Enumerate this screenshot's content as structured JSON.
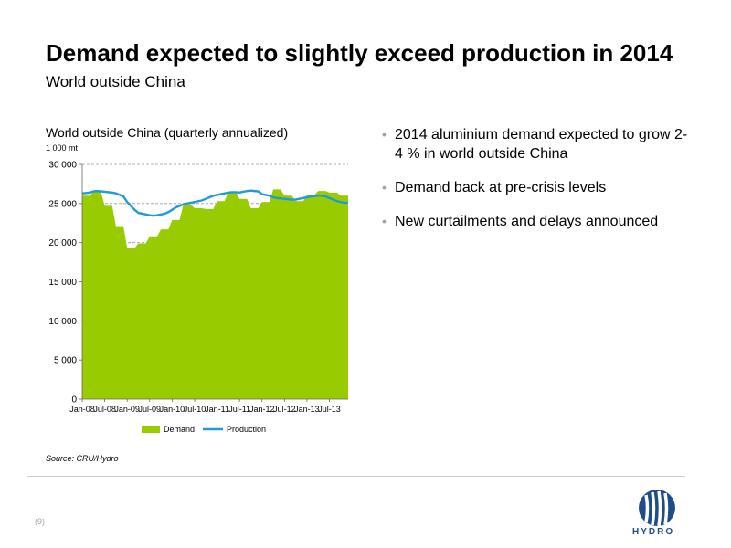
{
  "slide": {
    "title": "Demand expected to slightly exceed production in 2014",
    "subtitle": "World outside China",
    "source": "Source: CRU/Hydro",
    "page_number": "(9)",
    "bullets": [
      "2014 aluminium demand expected to grow 2-4 % in world outside China",
      "Demand back at pre-crisis levels",
      "New curtailments and delays announced"
    ],
    "logo_text": "HYDRO"
  },
  "colors": {
    "demand": "#99cc00",
    "production": "#1f9bd7",
    "grid": "#999999",
    "bullet": "#9aa3ad",
    "brand": "#1f4d8c"
  },
  "chart_data": {
    "type": "area",
    "title": "World outside China (quarterly annualized)",
    "unit": "1 000 mt",
    "ylim": [
      0,
      30000
    ],
    "yticks": [
      0,
      5000,
      10000,
      15000,
      20000,
      25000,
      30000
    ],
    "ytick_labels": [
      "0",
      "5 000",
      "10 000",
      "15 000",
      "20 000",
      "25 000",
      "30 000"
    ],
    "tick_labels": [
      "Jan-08",
      "Jul-08",
      "Jan-09",
      "Jul-09",
      "Jan-10",
      "Jul-10",
      "Jan-11",
      "Jul-11",
      "Jan-12",
      "Jul-12",
      "Jan-13",
      "Jul-13"
    ],
    "x": [
      "Jan-08",
      "Feb-08",
      "Mar-08",
      "Apr-08",
      "May-08",
      "Jun-08",
      "Jul-08",
      "Aug-08",
      "Sep-08",
      "Oct-08",
      "Nov-08",
      "Dec-08",
      "Jan-09",
      "Feb-09",
      "Mar-09",
      "Apr-09",
      "May-09",
      "Jun-09",
      "Jul-09",
      "Aug-09",
      "Sep-09",
      "Oct-09",
      "Nov-09",
      "Dec-09",
      "Jan-10",
      "Feb-10",
      "Mar-10",
      "Apr-10",
      "May-10",
      "Jun-10",
      "Jul-10",
      "Aug-10",
      "Sep-10",
      "Oct-10",
      "Nov-10",
      "Dec-10",
      "Jan-11",
      "Feb-11",
      "Mar-11",
      "Apr-11",
      "May-11",
      "Jun-11",
      "Jul-11",
      "Aug-11",
      "Sep-11",
      "Oct-11",
      "Nov-11",
      "Dec-11",
      "Jan-12",
      "Feb-12",
      "Mar-12",
      "Apr-12",
      "May-12",
      "Jun-12",
      "Jul-12",
      "Aug-12",
      "Sep-12",
      "Oct-12",
      "Nov-12",
      "Dec-12",
      "Jan-13",
      "Feb-13",
      "Mar-13",
      "Apr-13",
      "May-13",
      "Jun-13",
      "Jul-13",
      "Aug-13",
      "Sep-13",
      "Oct-13",
      "Nov-13",
      "Dec-13"
    ],
    "series": [
      {
        "name": "Demand",
        "kind": "area",
        "values": [
          26000,
          26000,
          26000,
          26500,
          26500,
          26500,
          24700,
          24700,
          24700,
          22100,
          22100,
          22100,
          19300,
          19300,
          19300,
          19900,
          19900,
          19900,
          20800,
          20800,
          20800,
          21700,
          21700,
          21700,
          22900,
          22900,
          22900,
          24900,
          24900,
          24900,
          24400,
          24400,
          24400,
          24300,
          24300,
          24300,
          25300,
          25300,
          25300,
          26500,
          26500,
          26500,
          25600,
          25600,
          25600,
          24400,
          24400,
          24400,
          25200,
          25200,
          25200,
          26800,
          26800,
          26800,
          26000,
          26000,
          26000,
          25300,
          25300,
          25300,
          26100,
          26100,
          26100,
          26600,
          26600,
          26600,
          26400,
          26400,
          26400,
          26000,
          26000,
          26000
        ]
      },
      {
        "name": "Production",
        "kind": "line",
        "values": [
          26300,
          26350,
          26400,
          26550,
          26600,
          26550,
          26500,
          26450,
          26400,
          26300,
          26100,
          25900,
          25200,
          24700,
          24200,
          23800,
          23700,
          23600,
          23500,
          23450,
          23500,
          23600,
          23700,
          23900,
          24200,
          24500,
          24700,
          24900,
          25000,
          25100,
          25200,
          25300,
          25400,
          25600,
          25800,
          26000,
          26100,
          26200,
          26300,
          26400,
          26450,
          26450,
          26400,
          26500,
          26600,
          26650,
          26600,
          26550,
          26200,
          26100,
          26000,
          25800,
          25700,
          25650,
          25600,
          25550,
          25500,
          25500,
          25600,
          25700,
          25800,
          25900,
          25950,
          26000,
          26000,
          25900,
          25700,
          25500,
          25300,
          25200,
          25100,
          25100
        ]
      }
    ],
    "legend": {
      "position": "bottom",
      "entries": [
        "Demand",
        "Production"
      ]
    },
    "grid": {
      "y": true,
      "style": "dashed"
    }
  }
}
